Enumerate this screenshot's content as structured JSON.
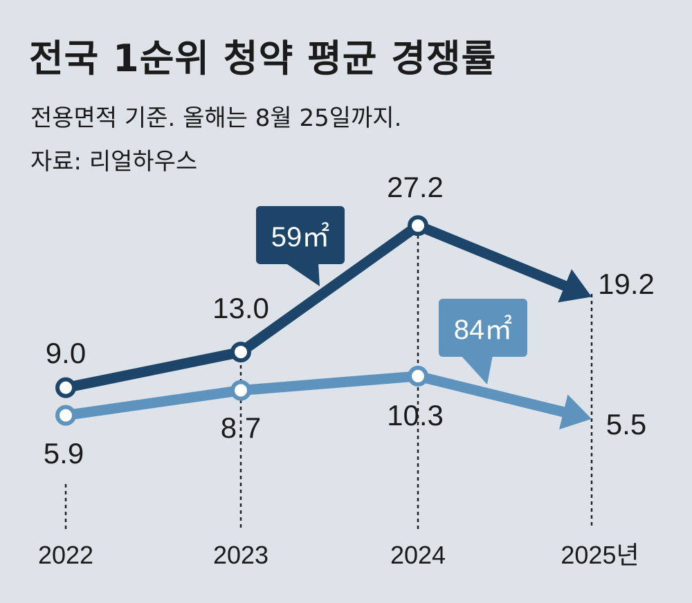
{
  "title": "전국 1순위 청약 평균 경쟁률",
  "subtitle": "전용면적 기준. 올해는 8월 25일까지.",
  "source": "자료: 리얼하우스",
  "colors": {
    "background": "#dde3e9",
    "series_59": "#1d4569",
    "series_84": "#5e93bd",
    "marker_fill": "#ffffff"
  },
  "chart_data": {
    "type": "line",
    "title": "전국 1순위 청약 평균 경쟁률",
    "subtitle": "전용면적 기준. 올해는 8월 25일까지.",
    "categories": [
      "2022",
      "2023",
      "2024",
      "2025년"
    ],
    "series": [
      {
        "name": "59㎡",
        "values": [
          9.0,
          13.0,
          27.2,
          19.2
        ],
        "labels": [
          "9.0",
          "13.0",
          "27.2",
          "19.2"
        ]
      },
      {
        "name": "84㎡",
        "values": [
          5.9,
          8.7,
          10.3,
          5.5
        ],
        "labels": [
          "5.9",
          "8.7",
          "10.3",
          "5.5"
        ]
      }
    ],
    "xlabel": "",
    "ylabel": "",
    "grid": false,
    "legend": "inline callouts"
  }
}
